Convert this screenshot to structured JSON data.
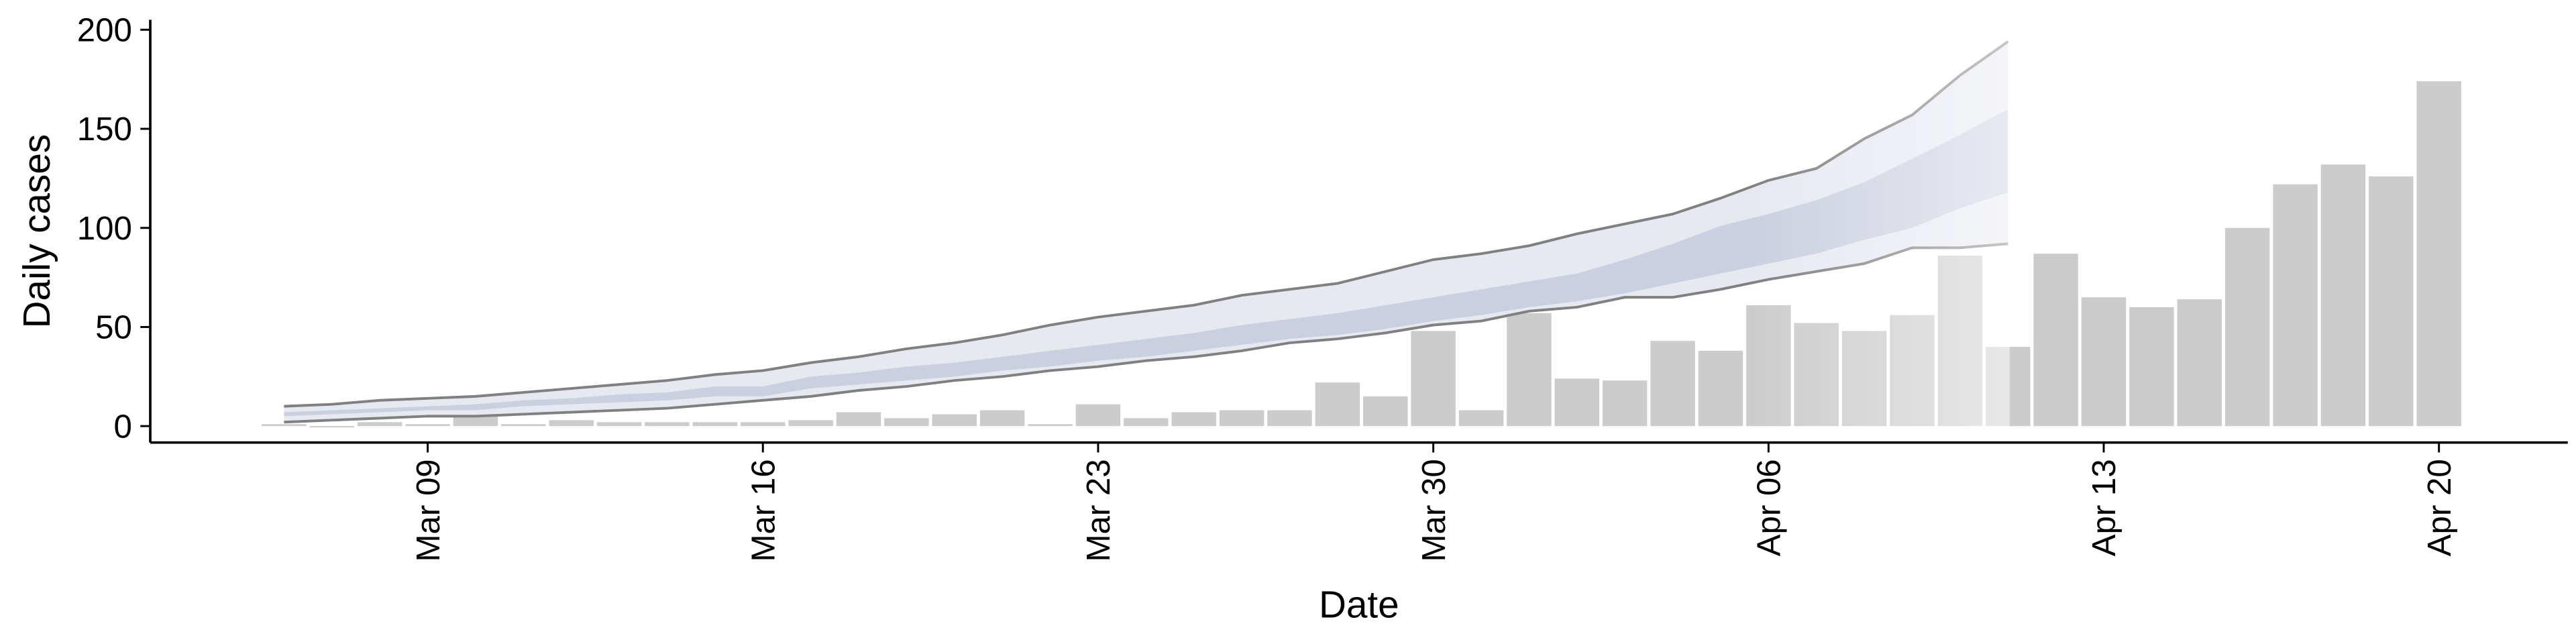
{
  "chart_data": {
    "type": "bar",
    "x_label": "Date",
    "y_label": "Daily cases",
    "categories": [
      null,
      null,
      null,
      "Mar 09",
      null,
      null,
      null,
      null,
      null,
      null,
      "Mar 16",
      null,
      null,
      null,
      null,
      null,
      null,
      "Mar 23",
      null,
      null,
      null,
      null,
      null,
      null,
      "Mar 30",
      null,
      null,
      null,
      null,
      null,
      null,
      "Apr 06",
      null,
      null,
      null,
      null,
      null,
      null,
      "Apr 13",
      null,
      null,
      null,
      null,
      null,
      null,
      "Apr 20"
    ],
    "values": [
      1,
      0,
      2,
      1,
      5,
      1,
      3,
      2,
      2,
      2,
      2,
      3,
      7,
      4,
      6,
      8,
      1,
      11,
      4,
      7,
      8,
      8,
      22,
      15,
      48,
      8,
      57,
      24,
      23,
      43,
      38,
      61,
      52,
      48,
      56,
      86,
      40,
      87,
      65,
      60,
      64,
      100,
      122,
      132,
      126,
      174
    ],
    "color": "#cccccc",
    "bands": [
      {
        "lower": [
          2,
          3,
          4,
          5,
          5,
          6,
          7,
          8,
          9,
          11,
          13,
          15,
          18,
          20,
          23,
          25,
          28,
          30,
          33,
          35,
          38,
          42,
          44,
          47,
          51,
          53,
          58,
          60,
          65,
          65,
          69,
          74,
          78,
          82,
          90,
          90,
          92,
          null,
          null,
          null,
          null,
          null,
          null,
          null,
          null,
          null
        ],
        "upper": [
          10,
          11,
          13,
          14,
          15,
          17,
          19,
          21,
          23,
          26,
          28,
          32,
          35,
          39,
          42,
          46,
          51,
          55,
          58,
          61,
          66,
          69,
          72,
          78,
          84,
          87,
          91,
          97,
          102,
          107,
          115,
          124,
          130,
          145,
          157,
          177,
          194,
          null,
          null,
          null,
          null,
          null,
          null,
          null,
          null,
          null
        ],
        "color": "#e3e5ef",
        "line_color": "#808080"
      },
      {
        "lower": [
          5,
          6,
          7,
          8,
          8,
          10,
          11,
          12,
          13,
          15,
          15,
          19,
          21,
          23,
          25,
          28,
          30,
          33,
          35,
          38,
          41,
          44,
          46,
          49,
          53,
          56,
          60,
          63,
          67,
          72,
          77,
          82,
          87,
          94,
          100,
          110,
          118,
          null,
          null,
          null,
          null,
          null,
          null,
          null,
          null,
          null
        ],
        "upper": [
          7,
          8,
          9,
          10,
          11,
          13,
          14,
          16,
          17,
          20,
          20,
          25,
          27,
          30,
          32,
          35,
          38,
          41,
          44,
          47,
          51,
          54,
          57,
          61,
          65,
          69,
          73,
          77,
          84,
          92,
          101,
          107,
          114,
          123,
          135,
          147,
          160,
          null,
          null,
          null,
          null,
          null,
          null,
          null,
          null,
          null
        ],
        "color": "#c6cbdd"
      }
    ],
    "ylim": [
      -8.3,
      205
    ],
    "yticks": [
      0,
      50,
      100,
      150,
      200
    ],
    "grid": false
  }
}
